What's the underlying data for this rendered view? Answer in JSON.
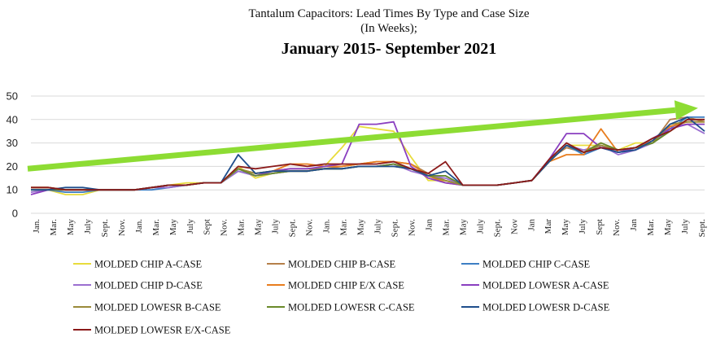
{
  "chart_data": {
    "type": "line",
    "title": "Tantalum  Capacitors: Lead Times By Type and Case Size",
    "subtitle": "(In Weeks);",
    "subtitle2": "January 2015- September 2021",
    "ylim": [
      0,
      50
    ],
    "yticks": [
      0,
      10,
      20,
      30,
      40,
      50
    ],
    "grid": true,
    "legend_position": "bottom",
    "categories": [
      "Jan.",
      "Mar.",
      "May",
      "July",
      "Sept.",
      "Nov.",
      "Jan.",
      "Mar.",
      "May",
      "July",
      "Sept",
      "Nov.",
      "Mar.",
      "May",
      "July",
      "Sept.",
      "Nov.",
      "Jan.",
      "Mar.",
      "May",
      "July",
      "Sept.",
      "Nov.",
      "Jan",
      "Mar.",
      "May",
      "July",
      "Sept.",
      "Nov",
      "Jan",
      "Mar",
      "May",
      "July",
      "Sept",
      "Nov.",
      "Jan",
      "Mar.",
      "May",
      "July",
      "Sept."
    ],
    "trend_arrow": {
      "from": 19,
      "to": 44,
      "color": "#8ddc33"
    },
    "series": [
      {
        "name": "MOLDED CHIP A-CASE",
        "color": "#e8dc3c",
        "values": [
          10,
          10,
          8,
          8,
          10,
          10,
          10,
          11,
          12,
          13,
          13,
          13,
          20,
          15,
          17,
          18,
          18,
          20,
          28,
          37,
          36,
          35,
          24,
          14,
          14,
          12,
          12,
          12,
          13,
          14,
          22,
          29,
          29,
          29,
          27,
          30,
          30,
          37,
          38,
          38
        ]
      },
      {
        "name": "MOLDED CHIP B-CASE",
        "color": "#b5804a",
        "values": [
          11,
          11,
          10,
          10,
          10,
          10,
          10,
          11,
          12,
          12,
          13,
          13,
          19,
          17,
          18,
          19,
          19,
          19,
          20,
          21,
          22,
          22,
          21,
          17,
          14,
          12,
          12,
          12,
          13,
          14,
          23,
          28,
          26,
          30,
          27,
          28,
          30,
          40,
          41,
          39
        ]
      },
      {
        "name": "MOLDED CHIP C-CASE",
        "color": "#3d7fc4",
        "values": [
          10,
          10,
          9,
          9,
          10,
          10,
          10,
          10,
          11,
          12,
          13,
          13,
          18,
          16,
          17,
          18,
          18,
          19,
          19,
          20,
          20,
          21,
          19,
          16,
          16,
          12,
          12,
          12,
          13,
          14,
          22,
          29,
          25,
          28,
          26,
          27,
          30,
          36,
          41,
          41
        ]
      },
      {
        "name": "MOLDED CHIP D-CASE",
        "color": "#9b6fd0",
        "values": [
          9,
          10,
          10,
          10,
          10,
          10,
          10,
          11,
          11,
          12,
          13,
          13,
          18,
          16,
          17,
          18,
          18,
          19,
          19,
          20,
          20,
          21,
          18,
          16,
          15,
          12,
          12,
          12,
          13,
          14,
          22,
          29,
          27,
          29,
          25,
          27,
          30,
          37,
          38,
          34
        ]
      },
      {
        "name": "MOLDED CHIP E/X CASE",
        "color": "#e87d1e",
        "values": [
          11,
          11,
          10,
          10,
          10,
          10,
          10,
          11,
          12,
          12,
          13,
          13,
          19,
          17,
          18,
          21,
          21,
          20,
          20,
          21,
          22,
          22,
          21,
          16,
          13,
          12,
          12,
          12,
          13,
          14,
          22,
          25,
          25,
          36,
          26,
          28,
          31,
          37,
          39,
          39
        ]
      },
      {
        "name": "MOLDED LOWESR A-CASE",
        "color": "#8a3fc0",
        "values": [
          8,
          10,
          10,
          10,
          10,
          10,
          10,
          11,
          12,
          12,
          13,
          13,
          19,
          16,
          18,
          19,
          19,
          20,
          21,
          38,
          38,
          39,
          20,
          15,
          13,
          12,
          12,
          12,
          13,
          14,
          23,
          34,
          34,
          28,
          26,
          28,
          32,
          36,
          38,
          38
        ]
      },
      {
        "name": "MOLDED LOWESR B-CASE",
        "color": "#9a8a3a",
        "values": [
          11,
          11,
          10,
          10,
          10,
          10,
          10,
          11,
          12,
          12,
          13,
          13,
          19,
          17,
          18,
          18,
          18,
          19,
          19,
          20,
          20,
          20,
          19,
          16,
          14,
          12,
          12,
          12,
          13,
          14,
          22,
          29,
          26,
          29,
          27,
          28,
          30,
          38,
          39,
          39
        ]
      },
      {
        "name": "MOLDED LOWESR C-CASE",
        "color": "#6a8a2a",
        "values": [
          10,
          10,
          10,
          10,
          10,
          10,
          10,
          11,
          12,
          12,
          13,
          13,
          19,
          16,
          17,
          18,
          18,
          19,
          19,
          20,
          20,
          21,
          19,
          16,
          16,
          12,
          12,
          12,
          13,
          14,
          22,
          29,
          26,
          30,
          27,
          28,
          30,
          35,
          40,
          40
        ]
      },
      {
        "name": "MOLDED LOWESR D-CASE",
        "color": "#1f4e8c",
        "values": [
          10,
          10,
          11,
          11,
          10,
          10,
          10,
          11,
          12,
          12,
          13,
          13,
          25,
          17,
          18,
          18,
          18,
          19,
          19,
          20,
          20,
          20,
          19,
          16,
          18,
          12,
          12,
          12,
          13,
          14,
          22,
          29,
          26,
          28,
          26,
          27,
          31,
          38,
          41,
          35
        ]
      },
      {
        "name": "MOLDED LOWESR E/X-CASE",
        "color": "#8b1a1a",
        "values": [
          11,
          11,
          10,
          10,
          10,
          10,
          10,
          11,
          12,
          12,
          13,
          13,
          20,
          19,
          20,
          21,
          20,
          21,
          21,
          21,
          21,
          22,
          19,
          17,
          22,
          12,
          12,
          12,
          13,
          14,
          23,
          30,
          26,
          28,
          27,
          28,
          32,
          35,
          40,
          40
        ]
      }
    ]
  }
}
